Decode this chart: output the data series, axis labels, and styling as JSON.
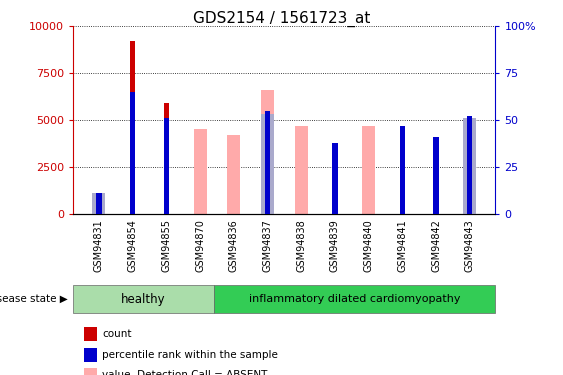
{
  "title": "GDS2154 / 1561723_at",
  "samples": [
    "GSM94831",
    "GSM94854",
    "GSM94855",
    "GSM94870",
    "GSM94836",
    "GSM94837",
    "GSM94838",
    "GSM94839",
    "GSM94840",
    "GSM94841",
    "GSM94842",
    "GSM94843"
  ],
  "healthy_count": 4,
  "idcm_count": 8,
  "count_values": [
    150,
    9200,
    5900,
    0,
    0,
    0,
    0,
    3200,
    0,
    4600,
    3500,
    5200
  ],
  "percentile_values": [
    11,
    65,
    51,
    0,
    0,
    55,
    0,
    38,
    0,
    47,
    41,
    52
  ],
  "value_absent": [
    200,
    0,
    0,
    4500,
    4200,
    6600,
    4700,
    0,
    4700,
    0,
    0,
    0
  ],
  "rank_absent": [
    11,
    0,
    0,
    0,
    0,
    53,
    0,
    0,
    0,
    0,
    0,
    51
  ],
  "count_color": "#cc0000",
  "percentile_color": "#0000cc",
  "value_absent_color": "#ffaaaa",
  "rank_absent_color": "#aaaacc",
  "ylim_left": [
    0,
    10000
  ],
  "ylim_right": [
    0,
    100
  ],
  "yticks_left": [
    0,
    2500,
    5000,
    7500,
    10000
  ],
  "yticks_right": [
    0,
    25,
    50,
    75,
    100
  ],
  "ytick_right_labels": [
    "0",
    "25",
    "50",
    "75",
    "100%"
  ],
  "healthy_color": "#aaddaa",
  "idcm_color": "#33cc55",
  "group_label": "disease state"
}
